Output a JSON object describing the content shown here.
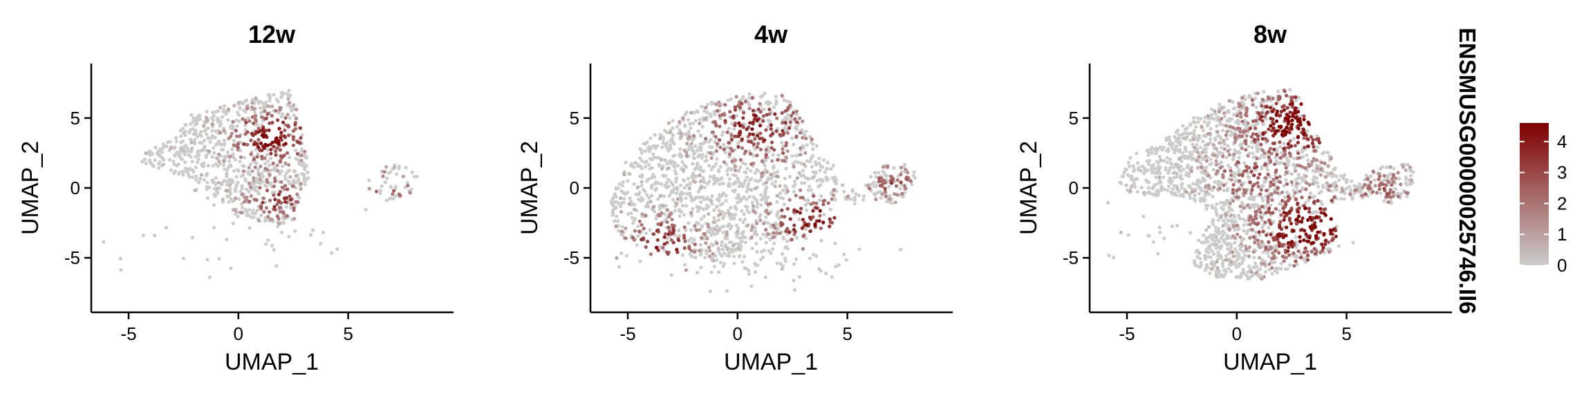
{
  "chart_data": {
    "type": "scatter",
    "panels": [
      {
        "title": "12w",
        "xlabel": "UMAP_1",
        "ylabel": "UMAP_2"
      },
      {
        "title": "4w",
        "xlabel": "UMAP_1",
        "ylabel": "UMAP_2"
      },
      {
        "title": "8w",
        "xlabel": "UMAP_1",
        "ylabel": "UMAP_2"
      }
    ],
    "xlim": [
      -6.7,
      9.8
    ],
    "ylim": [
      -8.9,
      8.9
    ],
    "xticks": [
      -5,
      0,
      5
    ],
    "yticks": [
      -5,
      0,
      5
    ],
    "grid": false,
    "legend": {
      "title": "ENSMUSG00000025746.Il6",
      "placement": "right",
      "range": [
        0,
        4.6
      ],
      "ticks": [
        0,
        1,
        2,
        3,
        4
      ],
      "color_low": "#cccccc",
      "color_high": "#7f0000"
    }
  }
}
